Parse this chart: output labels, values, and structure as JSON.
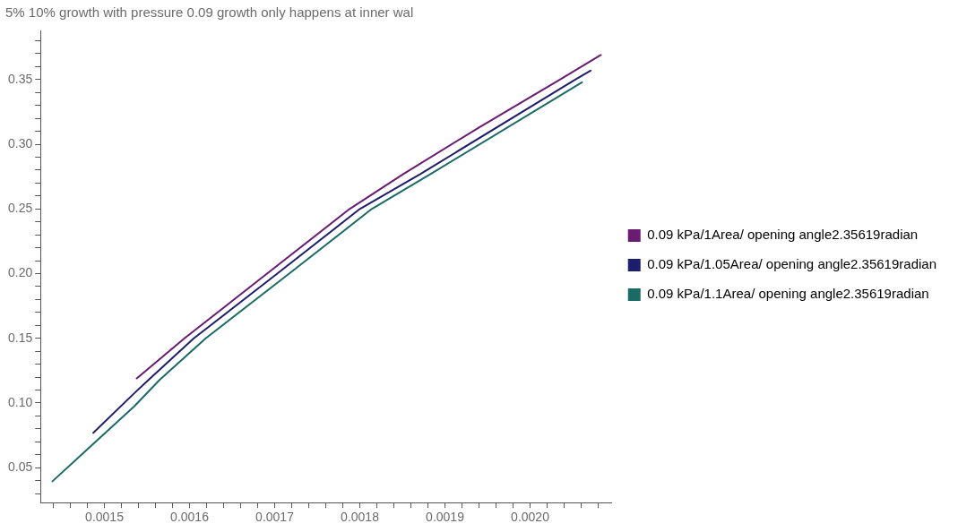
{
  "chart_data": {
    "type": "line",
    "title": "5% 10% growth with pressure 0.09 growth only happens at inner wal",
    "series": [
      {
        "name": "0.09 kPa/1Area/ opening angle2.35619radian",
        "color": "#6a1b72",
        "x": [
          0.001538,
          0.001594,
          0.001691,
          0.001788,
          0.001851,
          0.00194,
          0.002035,
          0.002083
        ],
        "values": [
          0.119,
          0.15,
          0.2,
          0.25,
          0.277,
          0.313,
          0.35,
          0.369
        ]
      },
      {
        "name": "0.09 kPa/1.05Area/ opening angle2.35619radian",
        "color": "#1e1e6e",
        "x": [
          0.001487,
          0.001535,
          0.001552,
          0.001605,
          0.001703,
          0.0018,
          0.001871,
          0.002053,
          0.002071
        ],
        "values": [
          0.077,
          0.1075,
          0.118,
          0.15,
          0.2,
          0.25,
          0.277,
          0.35,
          0.357
        ]
      },
      {
        "name": "0.09 kPa/1.1Area/ opening angle2.35619radian",
        "color": "#1a6b66",
        "x": [
          0.001439,
          0.001535,
          0.001565,
          0.001619,
          0.001717,
          0.001814,
          0.001883,
          0.002061
        ],
        "values": [
          0.0395,
          0.0974,
          0.118,
          0.15,
          0.2,
          0.25,
          0.277,
          0.348
        ]
      }
    ],
    "xlim": [
      0.001425,
      0.002096
    ],
    "ylim": [
      0.023,
      0.388
    ],
    "xticks": [
      {
        "value": 0.00144,
        "label": null
      },
      {
        "value": 0.00146,
        "label": null
      },
      {
        "value": 0.00148,
        "label": null
      },
      {
        "value": 0.0015,
        "label": "0.0015"
      },
      {
        "value": 0.00152,
        "label": null
      },
      {
        "value": 0.00154,
        "label": null
      },
      {
        "value": 0.00156,
        "label": null
      },
      {
        "value": 0.00158,
        "label": null
      },
      {
        "value": 0.0016,
        "label": "0.0016"
      },
      {
        "value": 0.00162,
        "label": null
      },
      {
        "value": 0.00164,
        "label": null
      },
      {
        "value": 0.00166,
        "label": null
      },
      {
        "value": 0.00168,
        "label": null
      },
      {
        "value": 0.0017,
        "label": "0.0017"
      },
      {
        "value": 0.00172,
        "label": null
      },
      {
        "value": 0.00174,
        "label": null
      },
      {
        "value": 0.00176,
        "label": null
      },
      {
        "value": 0.00178,
        "label": null
      },
      {
        "value": 0.0018,
        "label": "0.0018"
      },
      {
        "value": 0.00182,
        "label": null
      },
      {
        "value": 0.00184,
        "label": null
      },
      {
        "value": 0.00186,
        "label": null
      },
      {
        "value": 0.00188,
        "label": null
      },
      {
        "value": 0.0019,
        "label": "0.0019"
      },
      {
        "value": 0.00192,
        "label": null
      },
      {
        "value": 0.00194,
        "label": null
      },
      {
        "value": 0.00196,
        "label": null
      },
      {
        "value": 0.00198,
        "label": null
      },
      {
        "value": 0.002,
        "label": "0.0020"
      },
      {
        "value": 0.00202,
        "label": null
      },
      {
        "value": 0.00204,
        "label": null
      },
      {
        "value": 0.00206,
        "label": null
      },
      {
        "value": 0.00208,
        "label": null
      }
    ],
    "yticks": [
      {
        "value": 0.03,
        "label": null
      },
      {
        "value": 0.04,
        "label": null
      },
      {
        "value": 0.05,
        "label": "0.05"
      },
      {
        "value": 0.06,
        "label": null
      },
      {
        "value": 0.07,
        "label": null
      },
      {
        "value": 0.08,
        "label": null
      },
      {
        "value": 0.09,
        "label": null
      },
      {
        "value": 0.1,
        "label": "0.10"
      },
      {
        "value": 0.11,
        "label": null
      },
      {
        "value": 0.12,
        "label": null
      },
      {
        "value": 0.13,
        "label": null
      },
      {
        "value": 0.14,
        "label": null
      },
      {
        "value": 0.15,
        "label": "0.15"
      },
      {
        "value": 0.16,
        "label": null
      },
      {
        "value": 0.17,
        "label": null
      },
      {
        "value": 0.18,
        "label": null
      },
      {
        "value": 0.19,
        "label": null
      },
      {
        "value": 0.2,
        "label": "0.20"
      },
      {
        "value": 0.21,
        "label": null
      },
      {
        "value": 0.22,
        "label": null
      },
      {
        "value": 0.23,
        "label": null
      },
      {
        "value": 0.24,
        "label": null
      },
      {
        "value": 0.25,
        "label": "0.25"
      },
      {
        "value": 0.26,
        "label": null
      },
      {
        "value": 0.27,
        "label": null
      },
      {
        "value": 0.28,
        "label": null
      },
      {
        "value": 0.29,
        "label": null
      },
      {
        "value": 0.3,
        "label": "0.30"
      },
      {
        "value": 0.31,
        "label": null
      },
      {
        "value": 0.32,
        "label": null
      },
      {
        "value": 0.33,
        "label": null
      },
      {
        "value": 0.34,
        "label": null
      },
      {
        "value": 0.35,
        "label": "0.35"
      },
      {
        "value": 0.36,
        "label": null
      },
      {
        "value": 0.37,
        "label": null
      },
      {
        "value": 0.38,
        "label": null
      }
    ],
    "grid": false,
    "legend": "right",
    "marker": "none",
    "line_style": "solid"
  }
}
